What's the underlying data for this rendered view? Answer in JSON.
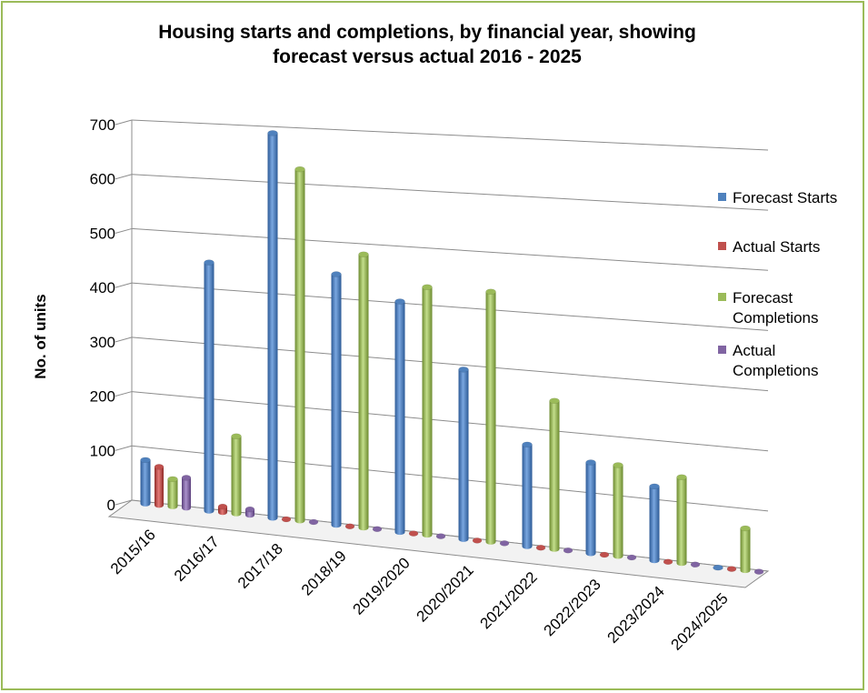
{
  "chart_data": {
    "type": "bar",
    "title_line1": "Housing starts and completions, by financial year, showing",
    "title_line2": "forecast versus actual 2016 - 2025",
    "ylabel": "No. of units",
    "xlabel": "",
    "ylim": [
      0,
      700
    ],
    "yticks": [
      "0",
      "100",
      "200",
      "300",
      "400",
      "500",
      "600",
      "700"
    ],
    "grid": true,
    "legend_position": "right",
    "categories": [
      "2015/16",
      "2016/17",
      "2017/18",
      "2018/19",
      "2019/2020",
      "2020/2021",
      "2021/2022",
      "2022/2023",
      "2023/2024",
      "2024/2025"
    ],
    "series": [
      {
        "name": "Forecast Starts",
        "color": "#4f81bd",
        "values": [
          80,
          450,
          690,
          445,
          405,
          295,
          175,
          155,
          125,
          0
        ]
      },
      {
        "name": "Actual Starts",
        "color": "#c0504d",
        "values": [
          70,
          10,
          0,
          0,
          0,
          0,
          0,
          0,
          0,
          0
        ]
      },
      {
        "name": "Forecast Completions",
        "color": "#9bbb59",
        "values": [
          50,
          140,
          630,
          485,
          435,
          435,
          255,
          155,
          145,
          70
        ]
      },
      {
        "name": "Actual Completions",
        "color": "#8064a2",
        "values": [
          55,
          10,
          0,
          0,
          0,
          0,
          0,
          0,
          0,
          0
        ]
      }
    ]
  }
}
